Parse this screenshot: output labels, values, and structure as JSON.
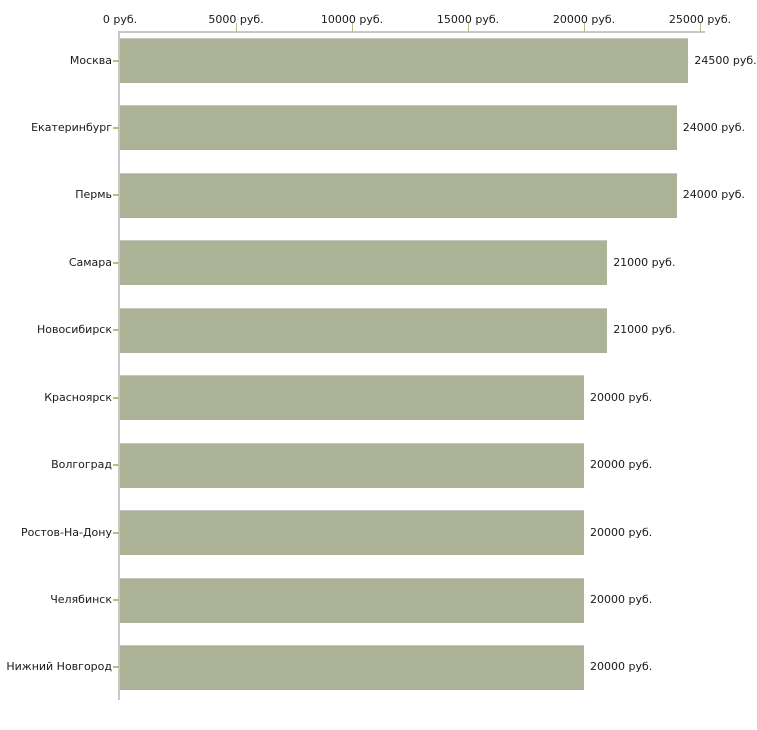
{
  "chart_data": {
    "type": "bar",
    "orientation": "horizontal",
    "categories": [
      "Москва",
      "Екатеринбург",
      "Пермь",
      "Самара",
      "Новосибирск",
      "Красноярск",
      "Волгоград",
      "Ростов-На-Дону",
      "Челябинск",
      "Нижний Новгород"
    ],
    "values": [
      24500,
      24000,
      24000,
      21000,
      21000,
      20000,
      20000,
      20000,
      20000,
      20000
    ],
    "value_labels": [
      "24500 руб.",
      "24000 руб.",
      "24000 руб.",
      "21000 руб.",
      "21000 руб.",
      "20000 руб.",
      "20000 руб.",
      "20000 руб.",
      "20000 руб.",
      "20000 руб."
    ],
    "x_axis": {
      "position": "top",
      "unit": "руб.",
      "tick_values": [
        0,
        5000,
        10000,
        15000,
        20000,
        25000
      ],
      "tick_labels": [
        "0 руб.",
        "5000 руб.",
        "10000 руб.",
        "15000 руб.",
        "20000 руб.",
        "25000 руб."
      ],
      "range": [
        0,
        25000
      ]
    },
    "grid": "off",
    "legend": "none",
    "colors": {
      "bar": "#abb296",
      "bar_top_edge": "#c6c8bd",
      "axis_line": "#c8c8c8",
      "tick": "#bfba7f",
      "text": "#1a1a1a",
      "background": "#ffffff"
    }
  }
}
